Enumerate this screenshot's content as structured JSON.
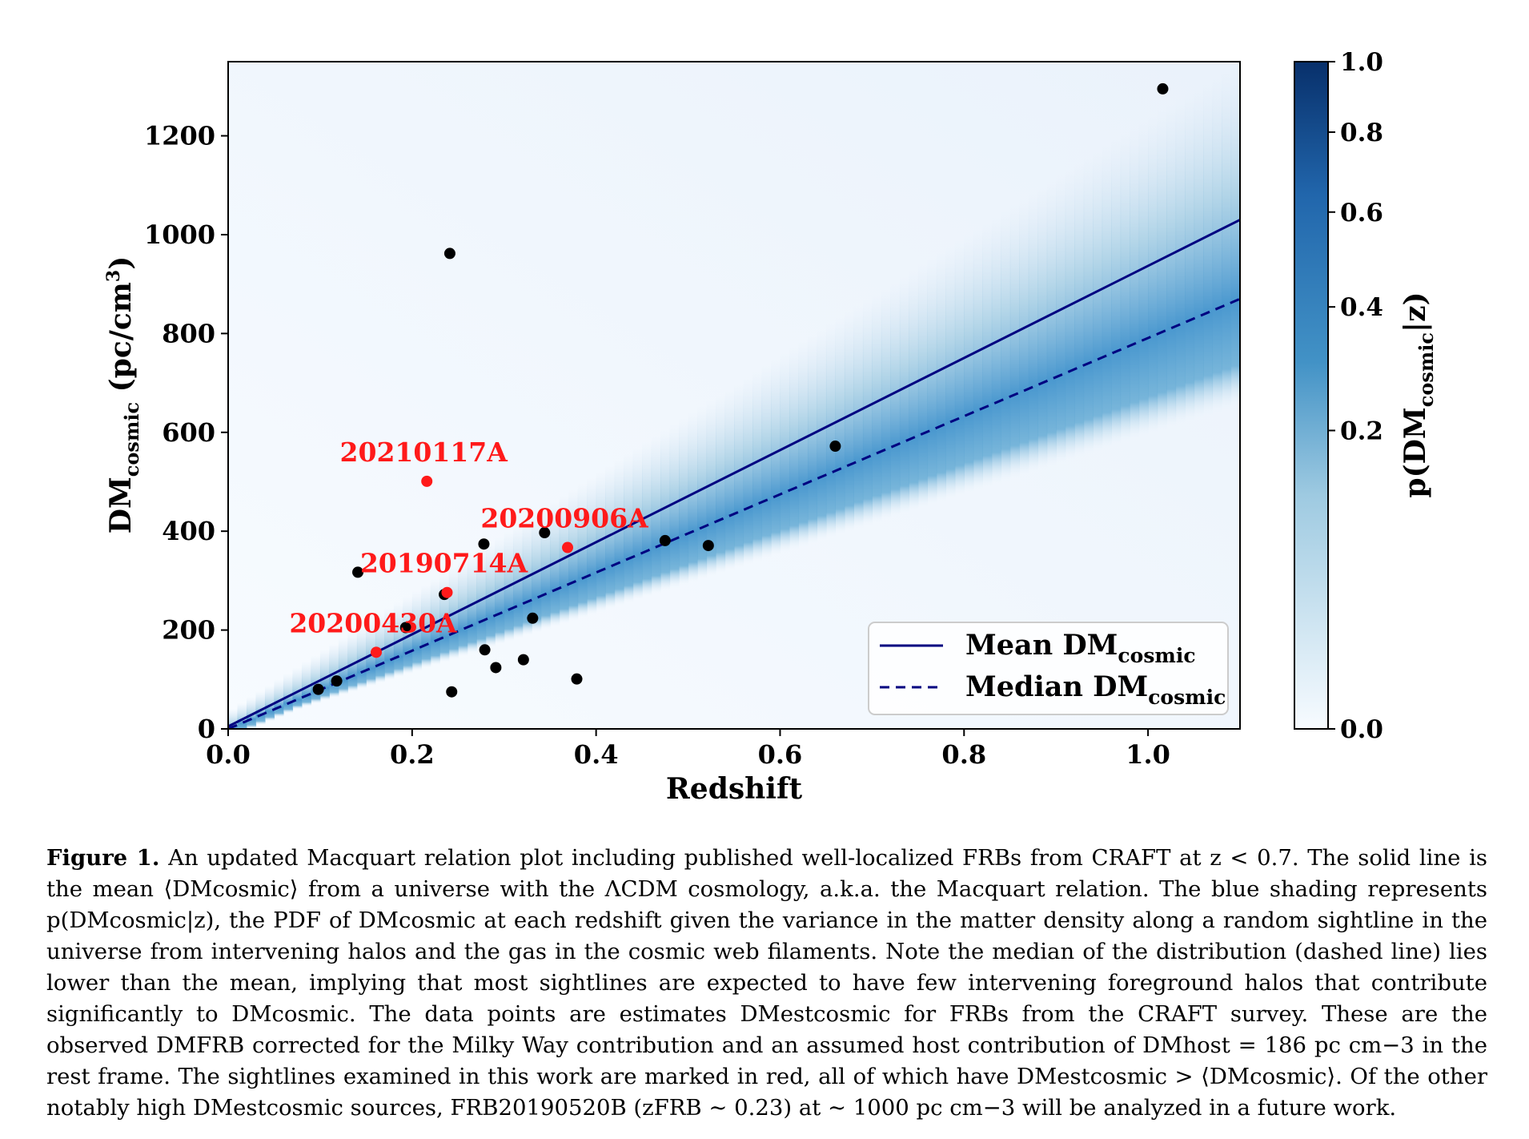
{
  "chart_data": {
    "type": "scatter",
    "xlabel": "Redshift",
    "ylabel": {
      "main": "DM",
      "sub": "cosmic",
      "unit": " (pc/cm",
      "sup": "3",
      "close": ")"
    },
    "xlim": [
      0.0,
      1.1
    ],
    "ylim": [
      0,
      1350
    ],
    "x_ticks": [
      "0.0",
      "0.2",
      "0.4",
      "0.6",
      "0.8",
      "1.0"
    ],
    "x_tick_values": [
      0.0,
      0.2,
      0.4,
      0.6,
      0.8,
      1.0
    ],
    "y_ticks": [
      "0",
      "200",
      "400",
      "600",
      "800",
      "1000",
      "1200"
    ],
    "y_tick_values": [
      0,
      200,
      400,
      600,
      800,
      1000,
      1200
    ],
    "grid": false,
    "legend_position": "lower-right",
    "lines": [
      {
        "name": "Mean DM",
        "name_sub": "cosmic",
        "style": "solid",
        "color": "#000080",
        "x": [
          0.0,
          1.1
        ],
        "y": [
          5,
          1030
        ]
      },
      {
        "name": "Median DM",
        "name_sub": "cosmic",
        "style": "dashed",
        "color": "#000080",
        "x": [
          0.0,
          1.1
        ],
        "y": [
          0,
          870
        ]
      }
    ],
    "black_points": {
      "color": "#000000",
      "x": [
        0.098,
        0.118,
        0.141,
        0.193,
        0.235,
        0.241,
        0.243,
        0.278,
        0.279,
        0.291,
        0.321,
        0.331,
        0.344,
        0.379,
        0.475,
        0.522,
        0.66,
        1.016
      ],
      "y": [
        80,
        97,
        317,
        205,
        272,
        962,
        75,
        374,
        160,
        124,
        140,
        224,
        397,
        101,
        381,
        371,
        572,
        1295
      ]
    },
    "red_points": {
      "color": "#ff1a1a",
      "x": [
        0.161,
        0.216,
        0.238,
        0.369
      ],
      "y": [
        155,
        501,
        276,
        367
      ],
      "labels": [
        "20200430A",
        "20210117A",
        "20190714A",
        "20200906A"
      ]
    },
    "colorbar": {
      "label": "p(DM",
      "label_sub": "cosmic",
      "label_tail": "|z)",
      "ticks": [
        "1.0",
        "0.8",
        "0.6",
        "0.4",
        "0.2",
        "0.0"
      ],
      "tick_values": [
        1.0,
        0.8,
        0.6,
        0.4,
        0.2,
        0.0
      ],
      "cmap_low": "#f7fbff",
      "cmap_high": "#08306b"
    }
  },
  "caption": {
    "label": "Figure 1.",
    "text": "An updated Macquart relation plot including published well-localized FRBs from CRAFT at z < 0.7. The solid line is the mean ⟨DMcosmic⟩ from a universe with the ΛCDM cosmology, a.k.a. the Macquart relation. The blue shading represents p(DMcosmic|z), the PDF of DMcosmic at each redshift given the variance in the matter density along a random sightline in the universe from intervening halos and the gas in the cosmic web filaments. Note the median of the distribution (dashed line) lies lower than the mean, implying that most sightlines are expected to have few intervening foreground halos that contribute significantly to DMcosmic. The data points are estimates DMestcosmic for FRBs from the CRAFT survey. These are the observed DMFRB corrected for the Milky Way contribution and an assumed host contribution of DMhost = 186 pc cm−3 in the rest frame. The sightlines examined in this work are marked in red, all of which have DMestcosmic > ⟨DMcosmic⟩. Of the other notably high DMestcosmic sources, FRB20190520B (zFRB ∼ 0.23) at ∼ 1000 pc cm−3 will be analyzed in a future work."
  }
}
